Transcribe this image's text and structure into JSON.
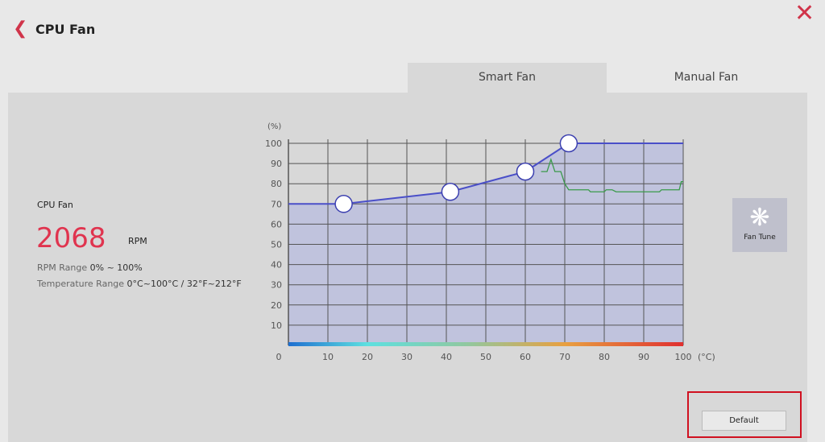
{
  "header": {
    "title": "CPU Fan",
    "back_icon": "chevron-left-icon",
    "close_icon": "close-icon"
  },
  "tabs": [
    {
      "label": "Smart Fan",
      "active": true
    },
    {
      "label": "Manual Fan",
      "active": false
    }
  ],
  "info": {
    "fan_name": "CPU Fan",
    "rpm_value": "2068",
    "rpm_unit": "RPM",
    "rpm_range_label": "RPM Range",
    "rpm_range_value": "0% ~ 100%",
    "temp_range_label": "Temperature Range",
    "temp_range_value": "0°C~100°C / 32°F~212°F"
  },
  "fan_tune": {
    "label": "Fan Tune",
    "icon": "fan-icon"
  },
  "default_button": "Default",
  "colors": {
    "accent": "#e0344f",
    "curve": "#4a4fc8",
    "fill": "#b8bcdf",
    "history": "#3a9a4a"
  },
  "chart_data": {
    "type": "line",
    "xlabel": "(°C)",
    "ylabel": "(%)",
    "xlim": [
      0,
      100
    ],
    "ylim": [
      0,
      100
    ],
    "xticks": [
      "0",
      "10",
      "20",
      "30",
      "40",
      "50",
      "60",
      "70",
      "80",
      "90",
      "100"
    ],
    "yticks": [
      "10",
      "20",
      "30",
      "40",
      "50",
      "60",
      "70",
      "80",
      "90",
      "100"
    ],
    "grid": true,
    "series": [
      {
        "role": "fan-curve",
        "points": [
          [
            0,
            70
          ],
          [
            14,
            70
          ],
          [
            41,
            76
          ],
          [
            60,
            86
          ],
          [
            71,
            100
          ],
          [
            100,
            100
          ]
        ],
        "control_points": [
          [
            14,
            70
          ],
          [
            41,
            76
          ],
          [
            60,
            86
          ],
          [
            71,
            100
          ]
        ]
      },
      {
        "role": "temperature-history",
        "points": [
          [
            64,
            86
          ],
          [
            65.5,
            86
          ],
          [
            66.5,
            92
          ],
          [
            67.5,
            86
          ],
          [
            69,
            86
          ],
          [
            70,
            80
          ],
          [
            71,
            77
          ],
          [
            76,
            77
          ],
          [
            76.5,
            76
          ],
          [
            80,
            76
          ],
          [
            80.5,
            77
          ],
          [
            82,
            77
          ],
          [
            83,
            76
          ],
          [
            94,
            76
          ],
          [
            94.5,
            77
          ],
          [
            99,
            77
          ],
          [
            99.5,
            81
          ],
          [
            100,
            81
          ]
        ]
      }
    ]
  }
}
